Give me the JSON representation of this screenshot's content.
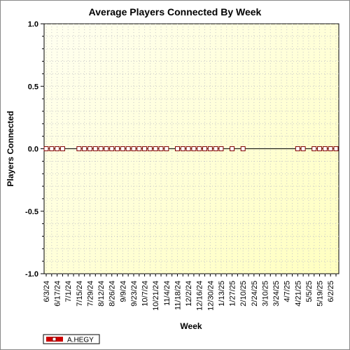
{
  "chart_data": {
    "type": "line",
    "title": "Average Players Connected By Week",
    "xlabel": "Week",
    "ylabel": "Players Connected",
    "ylim": [
      -1.0,
      1.0
    ],
    "yticks": [
      "1.0",
      "0.5",
      "0.0",
      "-0.5",
      "-1.0"
    ],
    "grid": true,
    "legend_position": "bottom-left",
    "x_tick_labels": [
      "6/3/24",
      "6/17/24",
      "7/1/24",
      "7/15/24",
      "7/29/24",
      "8/12/24",
      "8/26/24",
      "9/9/24",
      "9/23/24",
      "10/7/24",
      "10/21/24",
      "11/4/24",
      "11/18/24",
      "12/2/24",
      "12/16/24",
      "12/30/24",
      "1/13/25",
      "1/27/25",
      "2/10/25",
      "2/24/25",
      "3/10/25",
      "3/24/25",
      "4/7/25",
      "4/21/25",
      "5/5/25",
      "5/19/25",
      "6/2/25"
    ],
    "x": [
      "6/3/24",
      "6/10/24",
      "6/17/24",
      "6/24/24",
      "7/1/24",
      "7/8/24",
      "7/15/24",
      "7/22/24",
      "7/29/24",
      "8/5/24",
      "8/12/24",
      "8/19/24",
      "8/26/24",
      "9/2/24",
      "9/9/24",
      "9/16/24",
      "9/23/24",
      "9/30/24",
      "10/7/24",
      "10/14/24",
      "10/21/24",
      "10/28/24",
      "11/4/24",
      "11/11/24",
      "11/18/24",
      "11/25/24",
      "12/2/24",
      "12/9/24",
      "12/16/24",
      "12/23/24",
      "12/30/24",
      "1/6/25",
      "1/13/25",
      "1/20/25",
      "1/27/25",
      "2/3/25",
      "2/10/25",
      "2/17/25",
      "2/24/25",
      "3/3/25",
      "3/10/25",
      "3/17/25",
      "3/24/25",
      "3/31/25",
      "4/7/25",
      "4/14/25",
      "4/21/25",
      "4/28/25",
      "5/5/25",
      "5/12/25",
      "5/19/25",
      "5/26/25",
      "6/2/25",
      "6/9/25"
    ],
    "series": [
      {
        "name": "A.HEGY",
        "color": "#cc0000",
        "marker_fill": "#ffffff",
        "marker_stroke": "#800000",
        "values": [
          0,
          0,
          0,
          0,
          null,
          null,
          0,
          0,
          0,
          0,
          0,
          0,
          0,
          0,
          0,
          0,
          0,
          0,
          0,
          0,
          0,
          0,
          0,
          null,
          0,
          0,
          0,
          0,
          0,
          0,
          0,
          0,
          0,
          null,
          0,
          null,
          0,
          null,
          null,
          null,
          null,
          null,
          null,
          null,
          null,
          null,
          0,
          0,
          null,
          0,
          0,
          0,
          0,
          0
        ]
      }
    ]
  }
}
